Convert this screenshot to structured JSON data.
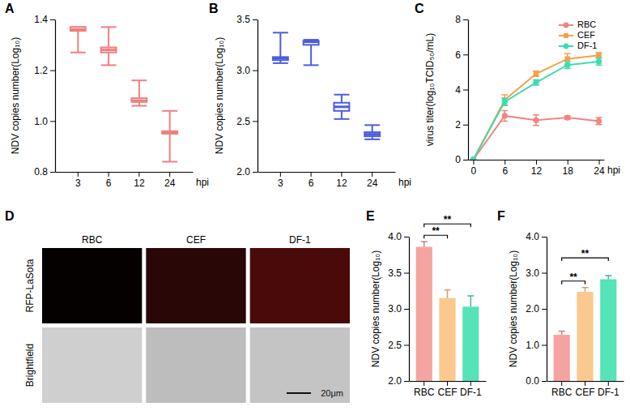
{
  "chart_data": [
    {
      "type": "box",
      "panel": "A",
      "ylabel": "NDV copies number(Log₁₀)",
      "xlabel": "hpi",
      "categories": [
        "3",
        "6",
        "12",
        "24"
      ],
      "color": "#f07f7f",
      "min": [
        1.27,
        1.22,
        1.06,
        0.84
      ],
      "q1": [
        1.355,
        1.27,
        1.075,
        0.95
      ],
      "median": [
        1.36,
        1.28,
        1.08,
        0.955
      ],
      "q3": [
        1.37,
        1.29,
        1.09,
        0.96
      ],
      "max": [
        1.37,
        1.37,
        1.16,
        1.04
      ],
      "ylim": [
        0.8,
        1.4
      ],
      "yticks": [
        0.8,
        {
          "value": 1,
          "label": "1.0"
        },
        1.2,
        1.4
      ]
    },
    {
      "type": "box",
      "panel": "B",
      "ylabel": "NDV copies number(Log₁₀)",
      "xlabel": "hpi",
      "categories": [
        "3",
        "6",
        "12",
        "24"
      ],
      "color": "#4b5de0",
      "min": [
        3.07,
        3.05,
        2.52,
        2.32
      ],
      "q1": [
        3.1,
        3.25,
        2.6,
        2.35
      ],
      "median": [
        3.12,
        3.28,
        2.64,
        2.37
      ],
      "q3": [
        3.13,
        3.29,
        2.68,
        2.39
      ],
      "max": [
        3.37,
        3.3,
        2.76,
        2.46
      ],
      "ylim": [
        2,
        3.5
      ],
      "yticks": [
        {
          "value": 2,
          "label": "2.0"
        },
        2.5,
        {
          "value": 3,
          "label": "3.0"
        },
        3.5
      ]
    },
    {
      "type": "line",
      "panel": "C",
      "ylabel": "virus titer(log₁₀TCID₅₀/mL)",
      "xlabel": "hpi",
      "x": [
        0,
        6,
        12,
        18,
        24
      ],
      "xlim": [
        -1,
        25
      ],
      "xticks": [
        0,
        6,
        12,
        18,
        24
      ],
      "ylim": [
        0,
        8
      ],
      "yticks": [
        0,
        2,
        4,
        6,
        8
      ],
      "legend": "upper right",
      "series": [
        {
          "name": "RBC",
          "color": "#f28580",
          "marker": "circle",
          "values": [
            0,
            2.5,
            2.25,
            2.4,
            2.2
          ],
          "errors": [
            0,
            0.3,
            0.3,
            0.1,
            0.2
          ]
        },
        {
          "name": "CEF",
          "color": "#f7a046",
          "marker": "square",
          "values": [
            0,
            3.4,
            4.9,
            5.75,
            5.95
          ],
          "errors": [
            0,
            0.3,
            0.15,
            0.3,
            0.15
          ]
        },
        {
          "name": "DF-1",
          "color": "#3fdcae",
          "marker": "circle",
          "values": [
            0,
            3.3,
            4.4,
            5.4,
            5.6
          ],
          "errors": [
            0,
            0.2,
            0.15,
            0.2,
            0.2
          ]
        }
      ]
    },
    {
      "type": "image_grid",
      "panel": "D",
      "columns": [
        "RBC",
        "CEF",
        "DF-1"
      ],
      "rows": [
        "RFP-LaSota",
        "Brightfield"
      ],
      "scale_bar": "20μm"
    },
    {
      "type": "bar",
      "panel": "E",
      "ylabel": "NDV copies number(Log₁₀)",
      "categories": [
        "RBC",
        "CEF",
        "DF-1"
      ],
      "values": [
        3.86,
        3.15,
        3.03
      ],
      "errors": [
        0.07,
        0.11,
        0.15
      ],
      "colors": [
        "#f5a3a0",
        "#fbc98d",
        "#55e3b8"
      ],
      "ylim": [
        2,
        4
      ],
      "yticks": [
        {
          "value": 2,
          "label": "2.0"
        },
        2.5,
        {
          "value": 3,
          "label": "3.0"
        },
        3.5,
        {
          "value": 4,
          "label": "4.0"
        }
      ],
      "annotations": [
        {
          "text": "**",
          "from": "RBC",
          "to": "CEF"
        },
        {
          "text": "**",
          "from": "RBC",
          "to": "DF-1"
        }
      ]
    },
    {
      "type": "bar",
      "panel": "F",
      "ylabel": "NDV copies number(Log₁₀)",
      "categories": [
        "RBC",
        "CEF",
        "DF-1"
      ],
      "values": [
        1.28,
        2.47,
        2.82
      ],
      "errors": [
        0.1,
        0.12,
        0.1
      ],
      "colors": [
        "#f5a3a0",
        "#fbc98d",
        "#55e3b8"
      ],
      "ylim": [
        0,
        4
      ],
      "yticks": [
        {
          "value": 0,
          "label": "0.0"
        },
        {
          "value": 1,
          "label": "1.0"
        },
        {
          "value": 2,
          "label": "2.0"
        },
        {
          "value": 3,
          "label": "3.0"
        },
        {
          "value": 4,
          "label": "4.0"
        }
      ],
      "annotations": [
        {
          "text": "**",
          "from": "RBC",
          "to": "CEF"
        },
        {
          "text": "**",
          "from": "RBC",
          "to": "DF-1"
        }
      ]
    }
  ]
}
